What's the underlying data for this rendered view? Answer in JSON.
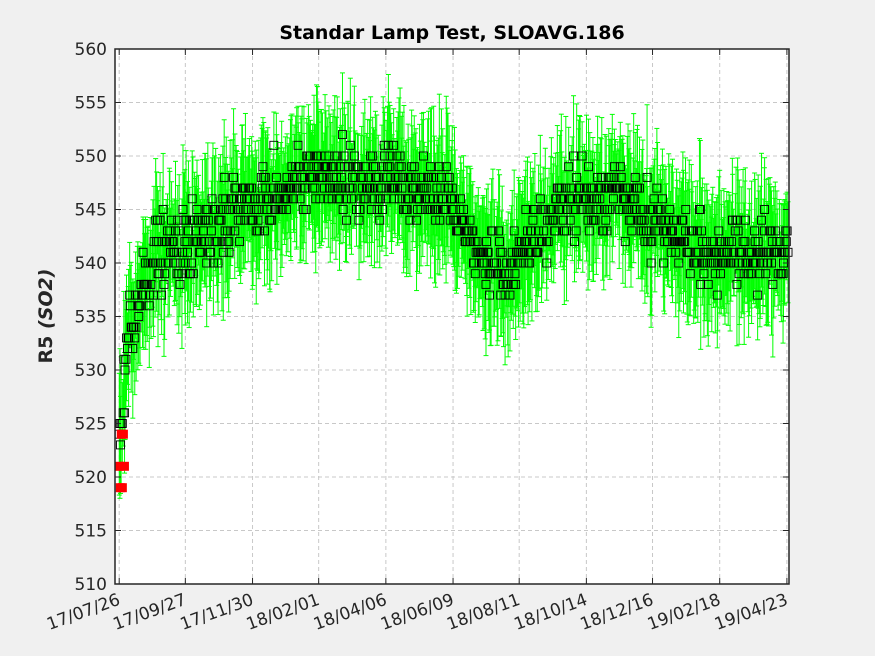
{
  "chart_data": {
    "type": "scatter",
    "title": "Standar Lamp Test, SLOAVG.186",
    "ylabel_main": "R5",
    "ylabel_italic": "(SO2)",
    "xlabel": "",
    "ylim": [
      510,
      560
    ],
    "y_ticks": [
      510,
      515,
      520,
      525,
      530,
      535,
      540,
      545,
      550,
      555,
      560
    ],
    "x_ticks": [
      "17/07/26",
      "17/09/27",
      "17/11/30",
      "18/02/01",
      "18/04/06",
      "18/06/09",
      "18/08/11",
      "18/10/14",
      "18/12/16",
      "19/02/18",
      "19/04/23"
    ],
    "x_tick_days": [
      0,
      63,
      127,
      190,
      254,
      318,
      381,
      445,
      508,
      572,
      636
    ],
    "xlim_days": [
      -4,
      638
    ],
    "grid": true,
    "colors": {
      "errorbar": "#00ff00",
      "marker": "#000000",
      "highlight": "#ff0000",
      "grid": "#c8c8c8"
    },
    "trend": [
      [
        0,
        523
      ],
      [
        3,
        526
      ],
      [
        6,
        531
      ],
      [
        10,
        536
      ],
      [
        15,
        533
      ],
      [
        20,
        537
      ],
      [
        25,
        539
      ],
      [
        35,
        541
      ],
      [
        50,
        541
      ],
      [
        65,
        542
      ],
      [
        80,
        543
      ],
      [
        100,
        544
      ],
      [
        120,
        545
      ],
      [
        140,
        546
      ],
      [
        160,
        547
      ],
      [
        180,
        548
      ],
      [
        200,
        548
      ],
      [
        220,
        548
      ],
      [
        240,
        547
      ],
      [
        260,
        548
      ],
      [
        280,
        547
      ],
      [
        300,
        547
      ],
      [
        320,
        545
      ],
      [
        335,
        542
      ],
      [
        345,
        540
      ],
      [
        360,
        540
      ],
      [
        375,
        539
      ],
      [
        385,
        541
      ],
      [
        400,
        543
      ],
      [
        420,
        545
      ],
      [
        440,
        546
      ],
      [
        460,
        546
      ],
      [
        480,
        546
      ],
      [
        500,
        545
      ],
      [
        520,
        543
      ],
      [
        540,
        542
      ],
      [
        555,
        541
      ],
      [
        570,
        541
      ],
      [
        590,
        541
      ],
      [
        610,
        541
      ],
      [
        638,
        541
      ]
    ],
    "highlighted_points": [
      {
        "x_day": 0,
        "y": 521
      },
      {
        "x_day": 1,
        "y": 519
      },
      {
        "x_day": 2,
        "y": 524
      },
      {
        "x_day": 3,
        "y": 519
      },
      {
        "x_day": 4,
        "y": 524
      },
      {
        "x_day": 5,
        "y": 521
      }
    ],
    "point_count": 900,
    "errorbar_halfwidth": 5
  }
}
